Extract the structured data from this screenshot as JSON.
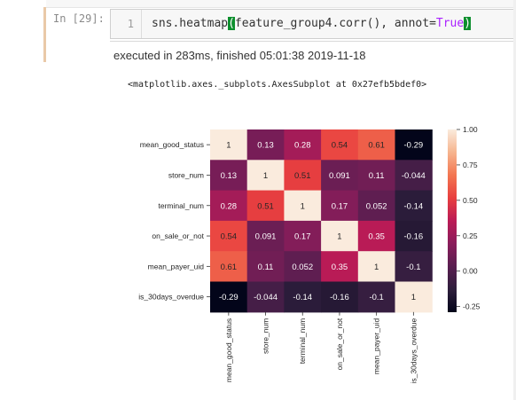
{
  "cell": {
    "prompt": "In  [29]:",
    "line_number": "1",
    "code": {
      "part1": "sns.heatmap",
      "paren_open": "(",
      "part2": "feature_group4.corr(), annot=",
      "kw": "True",
      "paren_close": ")"
    },
    "execution_info": "executed in 283ms, finished 05:01:38 2019-11-18"
  },
  "output": {
    "repr_text": "<matplotlib.axes._subplots.AxesSubplot at 0x27efb5bdef0>"
  },
  "chart_data": {
    "type": "heatmap",
    "title": "",
    "rows": [
      "mean_good_status",
      "store_num",
      "terminal_num",
      "on_sale_or_not",
      "mean_payer_uid",
      "is_30days_overdue"
    ],
    "columns": [
      "mean_good_status",
      "store_num",
      "terminal_num",
      "on_sale_or_not",
      "mean_payer_uid",
      "is_30days_overdue"
    ],
    "values": [
      [
        1,
        0.13,
        0.28,
        0.54,
        0.61,
        -0.29
      ],
      [
        0.13,
        1,
        0.51,
        0.091,
        0.11,
        -0.044
      ],
      [
        0.28,
        0.51,
        1,
        0.17,
        0.052,
        -0.14
      ],
      [
        0.54,
        0.091,
        0.17,
        1,
        0.35,
        -0.16
      ],
      [
        0.61,
        0.11,
        0.052,
        0.35,
        1,
        -0.1
      ],
      [
        -0.29,
        -0.044,
        -0.14,
        -0.16,
        -0.1,
        1
      ]
    ],
    "annotations": [
      [
        "1",
        "0.13",
        "0.28",
        "0.54",
        "0.61",
        "-0.29"
      ],
      [
        "0.13",
        "1",
        "0.51",
        "0.091",
        "0.11",
        "-0.044"
      ],
      [
        "0.28",
        "0.51",
        "1",
        "0.17",
        "0.052",
        "-0.14"
      ],
      [
        "0.54",
        "0.091",
        "0.17",
        "1",
        "0.35",
        "-0.16"
      ],
      [
        "0.61",
        "0.11",
        "0.052",
        "0.35",
        "1",
        "-0.1"
      ],
      [
        "-0.29",
        "-0.044",
        "-0.14",
        "-0.16",
        "-0.1",
        "1"
      ]
    ],
    "colorbar": {
      "ticks": [
        1.0,
        0.75,
        0.5,
        0.25,
        0.0,
        -0.25
      ],
      "tick_labels": [
        "1.00",
        "0.75",
        "0.50",
        "0.25",
        "0.00",
        "-0.25"
      ],
      "vmin": -0.29,
      "vmax": 1.0
    },
    "colormap": "rocket"
  }
}
